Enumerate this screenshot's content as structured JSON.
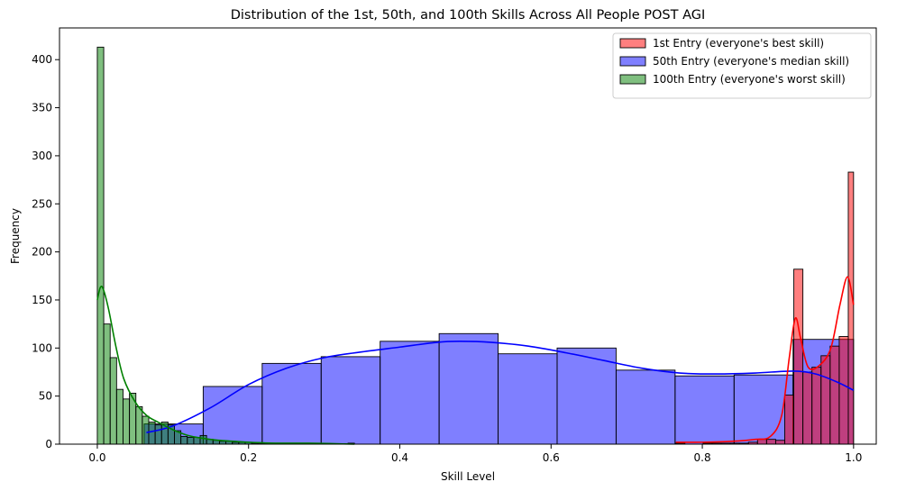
{
  "chart_data": {
    "type": "histogram",
    "title": "Distribution of the 1st, 50th, and 100th Skills Across All People POST AGI",
    "xlabel": "Skill Level",
    "ylabel": "Frequency",
    "xlim": [
      -0.05,
      1.03
    ],
    "ylim": [
      0,
      433
    ],
    "x_ticks": [
      0.0,
      0.2,
      0.4,
      0.6,
      0.8,
      1.0
    ],
    "x_tick_labels": [
      "0.0",
      "0.2",
      "0.4",
      "0.6",
      "0.8",
      "1.0"
    ],
    "y_ticks": [
      0,
      50,
      100,
      150,
      200,
      250,
      300,
      350,
      400
    ],
    "y_tick_labels": [
      "0",
      "50",
      "100",
      "150",
      "200",
      "250",
      "300",
      "350",
      "400"
    ],
    "grid": false,
    "legend_position": "top-right",
    "series": [
      {
        "name": "50th Entry (everyone's median skill)",
        "color": "#0000ff",
        "bins": [
          [
            0.062,
            0.14,
            21
          ],
          [
            0.14,
            0.218,
            60
          ],
          [
            0.218,
            0.296,
            84
          ],
          [
            0.296,
            0.374,
            91
          ],
          [
            0.374,
            0.452,
            107
          ],
          [
            0.452,
            0.53,
            115
          ],
          [
            0.53,
            0.608,
            94
          ],
          [
            0.608,
            0.686,
            100
          ],
          [
            0.686,
            0.764,
            77
          ],
          [
            0.764,
            0.842,
            71
          ],
          [
            0.842,
            0.92,
            72
          ],
          [
            0.92,
            1.0,
            109
          ]
        ],
        "kde": [
          [
            0.065,
            12
          ],
          [
            0.1,
            19
          ],
          [
            0.15,
            38
          ],
          [
            0.2,
            62
          ],
          [
            0.25,
            79
          ],
          [
            0.3,
            90
          ],
          [
            0.35,
            96
          ],
          [
            0.4,
            101
          ],
          [
            0.45,
            106
          ],
          [
            0.48,
            107
          ],
          [
            0.52,
            106
          ],
          [
            0.57,
            102
          ],
          [
            0.62,
            95
          ],
          [
            0.67,
            87
          ],
          [
            0.72,
            79
          ],
          [
            0.77,
            74
          ],
          [
            0.82,
            73
          ],
          [
            0.87,
            74
          ],
          [
            0.92,
            76
          ],
          [
            0.95,
            73
          ],
          [
            0.98,
            64
          ],
          [
            1.0,
            56
          ]
        ]
      },
      {
        "name": "1st Entry (everyone's best skill)",
        "color": "#ff0000",
        "bins": [
          [
            0.765,
            0.777,
            1
          ],
          [
            0.777,
            0.789,
            0
          ],
          [
            0.789,
            0.801,
            0
          ],
          [
            0.801,
            0.813,
            1
          ],
          [
            0.813,
            0.825,
            1
          ],
          [
            0.825,
            0.837,
            1
          ],
          [
            0.837,
            0.849,
            1
          ],
          [
            0.849,
            0.861,
            1
          ],
          [
            0.861,
            0.873,
            2
          ],
          [
            0.873,
            0.885,
            5
          ],
          [
            0.885,
            0.897,
            5
          ],
          [
            0.897,
            0.909,
            4
          ],
          [
            0.909,
            0.921,
            51
          ],
          [
            0.921,
            0.933,
            182
          ],
          [
            0.933,
            0.945,
            75
          ],
          [
            0.945,
            0.957,
            80
          ],
          [
            0.957,
            0.969,
            92
          ],
          [
            0.969,
            0.981,
            102
          ],
          [
            0.981,
            0.993,
            112
          ],
          [
            0.993,
            1.0,
            283
          ]
        ],
        "kde": [
          [
            0.765,
            2
          ],
          [
            0.8,
            2
          ],
          [
            0.84,
            3
          ],
          [
            0.87,
            5
          ],
          [
            0.89,
            8
          ],
          [
            0.905,
            30
          ],
          [
            0.915,
            90
          ],
          [
            0.923,
            131
          ],
          [
            0.93,
            110
          ],
          [
            0.94,
            80
          ],
          [
            0.955,
            82
          ],
          [
            0.97,
            100
          ],
          [
            0.982,
            145
          ],
          [
            0.992,
            174
          ],
          [
            1.0,
            145
          ]
        ]
      },
      {
        "name": "100th Entry (everyone's worst skill)",
        "color": "#008000",
        "bins": [
          [
            0.0,
            0.0085,
            413
          ],
          [
            0.0085,
            0.017,
            125
          ],
          [
            0.017,
            0.0255,
            90
          ],
          [
            0.0255,
            0.034,
            57
          ],
          [
            0.034,
            0.0425,
            47
          ],
          [
            0.0425,
            0.051,
            53
          ],
          [
            0.051,
            0.0595,
            39
          ],
          [
            0.0595,
            0.068,
            29
          ],
          [
            0.068,
            0.0765,
            23
          ],
          [
            0.0765,
            0.085,
            20
          ],
          [
            0.085,
            0.0935,
            23
          ],
          [
            0.0935,
            0.102,
            20
          ],
          [
            0.102,
            0.1105,
            14
          ],
          [
            0.1105,
            0.119,
            8
          ],
          [
            0.119,
            0.1275,
            7
          ],
          [
            0.1275,
            0.136,
            7
          ],
          [
            0.136,
            0.1445,
            9
          ],
          [
            0.1445,
            0.153,
            5
          ],
          [
            0.153,
            0.1615,
            4
          ],
          [
            0.1615,
            0.17,
            3
          ],
          [
            0.17,
            0.1785,
            3
          ],
          [
            0.1785,
            0.187,
            2
          ],
          [
            0.187,
            0.1955,
            2
          ],
          [
            0.1955,
            0.204,
            2
          ],
          [
            0.204,
            0.2125,
            1
          ],
          [
            0.2125,
            0.221,
            1
          ],
          [
            0.221,
            0.2295,
            1
          ],
          [
            0.2295,
            0.238,
            1
          ],
          [
            0.238,
            0.2465,
            1
          ],
          [
            0.2465,
            0.255,
            1
          ],
          [
            0.255,
            0.2635,
            1
          ],
          [
            0.2635,
            0.272,
            0
          ],
          [
            0.272,
            0.2805,
            0
          ],
          [
            0.2805,
            0.289,
            0
          ],
          [
            0.289,
            0.2975,
            0
          ],
          [
            0.2975,
            0.306,
            0
          ],
          [
            0.306,
            0.3145,
            0
          ],
          [
            0.3145,
            0.323,
            0
          ],
          [
            0.323,
            0.3315,
            0
          ],
          [
            0.3315,
            0.34,
            1
          ]
        ],
        "kde": [
          [
            0.0,
            150
          ],
          [
            0.004,
            163
          ],
          [
            0.008,
            161
          ],
          [
            0.015,
            140
          ],
          [
            0.025,
            100
          ],
          [
            0.035,
            68
          ],
          [
            0.05,
            44
          ],
          [
            0.065,
            30
          ],
          [
            0.08,
            23
          ],
          [
            0.1,
            15
          ],
          [
            0.12,
            9
          ],
          [
            0.14,
            6
          ],
          [
            0.16,
            4
          ],
          [
            0.18,
            3
          ],
          [
            0.2,
            2
          ],
          [
            0.24,
            1
          ],
          [
            0.28,
            1
          ],
          [
            0.34,
            0
          ]
        ]
      }
    ],
    "legend": [
      {
        "label": "1st Entry (everyone's best skill)",
        "color": "#ff0000"
      },
      {
        "label": "50th Entry (everyone's median skill)",
        "color": "#0000ff"
      },
      {
        "label": "100th Entry (everyone's worst skill)",
        "color": "#008000"
      }
    ]
  }
}
